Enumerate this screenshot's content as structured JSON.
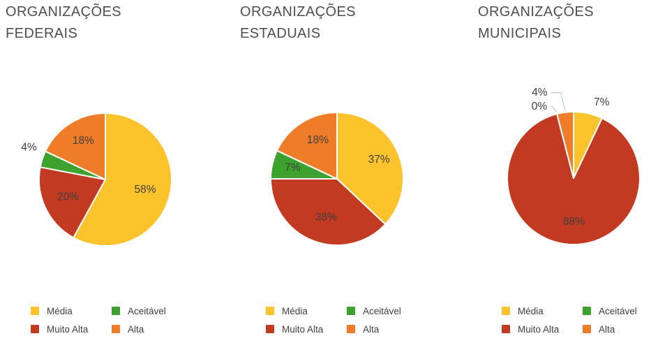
{
  "page": {
    "background": "#FFFFFF"
  },
  "palette": {
    "Média": "#FCC32D",
    "Muito Alta": "#C23A21",
    "Aceitável": "#3EA22F",
    "Alta": "#EE7C29"
  },
  "text_colors": {
    "title": "#4F4F4F",
    "slice_label": "#3F3F3F",
    "legend_label": "#3F3F3F",
    "leader_line": "#A9C3D3"
  },
  "legend_items": [
    {
      "label": "Média",
      "color_key": "Média"
    },
    {
      "label": "Aceitável",
      "color_key": "Aceitável"
    },
    {
      "label": "Muito Alta",
      "color_key": "Muito Alta"
    },
    {
      "label": "Alta",
      "color_key": "Alta"
    }
  ],
  "chart_data": [
    {
      "type": "pie",
      "title": "ORGANIZAÇÕES FEDERAIS",
      "categories": [
        "Média",
        "Muito Alta",
        "Aceitável",
        "Alta"
      ],
      "values": [
        58,
        20,
        4,
        18
      ],
      "labels": [
        "58%",
        "20%",
        "4%",
        "18%"
      ],
      "label_placement": [
        "inside",
        "inside",
        "outside",
        "inside"
      ],
      "label_nudge": [
        [
          0,
          0
        ],
        [
          0,
          0
        ],
        [
          8,
          -8
        ],
        [
          0,
          -6
        ]
      ],
      "start_angle_deg": 0,
      "direction": "clockwise",
      "legend_position": "bottom"
    },
    {
      "type": "pie",
      "title": "ORGANIZAÇÕES ESTADUAIS",
      "categories": [
        "Média",
        "Muito Alta",
        "Aceitável",
        "Alta"
      ],
      "values": [
        37,
        38,
        7,
        18
      ],
      "labels": [
        "37%",
        "38%",
        "7%",
        "18%"
      ],
      "label_placement": [
        "inside",
        "inside",
        "inside",
        "inside"
      ],
      "label_nudge": [
        [
          6,
          -4
        ],
        [
          6,
          0
        ],
        [
          -6,
          -3
        ],
        [
          4,
          -6
        ]
      ],
      "start_angle_deg": 0,
      "direction": "clockwise",
      "legend_position": "bottom"
    },
    {
      "type": "pie",
      "title": "ORGANIZAÇÕES MUNICIPAIS",
      "categories": [
        "Média",
        "Muito Alta",
        "Aceitável",
        "Alta"
      ],
      "values": [
        7,
        88,
        0,
        4
      ],
      "labels": [
        "7%",
        "88%",
        "0%",
        "4%"
      ],
      "label_placement": [
        "outside",
        "inside",
        "outside-leader",
        "outside-leader"
      ],
      "label_nudge": [
        [
          13,
          12
        ],
        [
          6,
          4
        ],
        [
          12,
          17
        ],
        [
          -3,
          0
        ]
      ],
      "start_angle_deg": 0,
      "direction": "clockwise",
      "legend_position": "bottom"
    }
  ]
}
